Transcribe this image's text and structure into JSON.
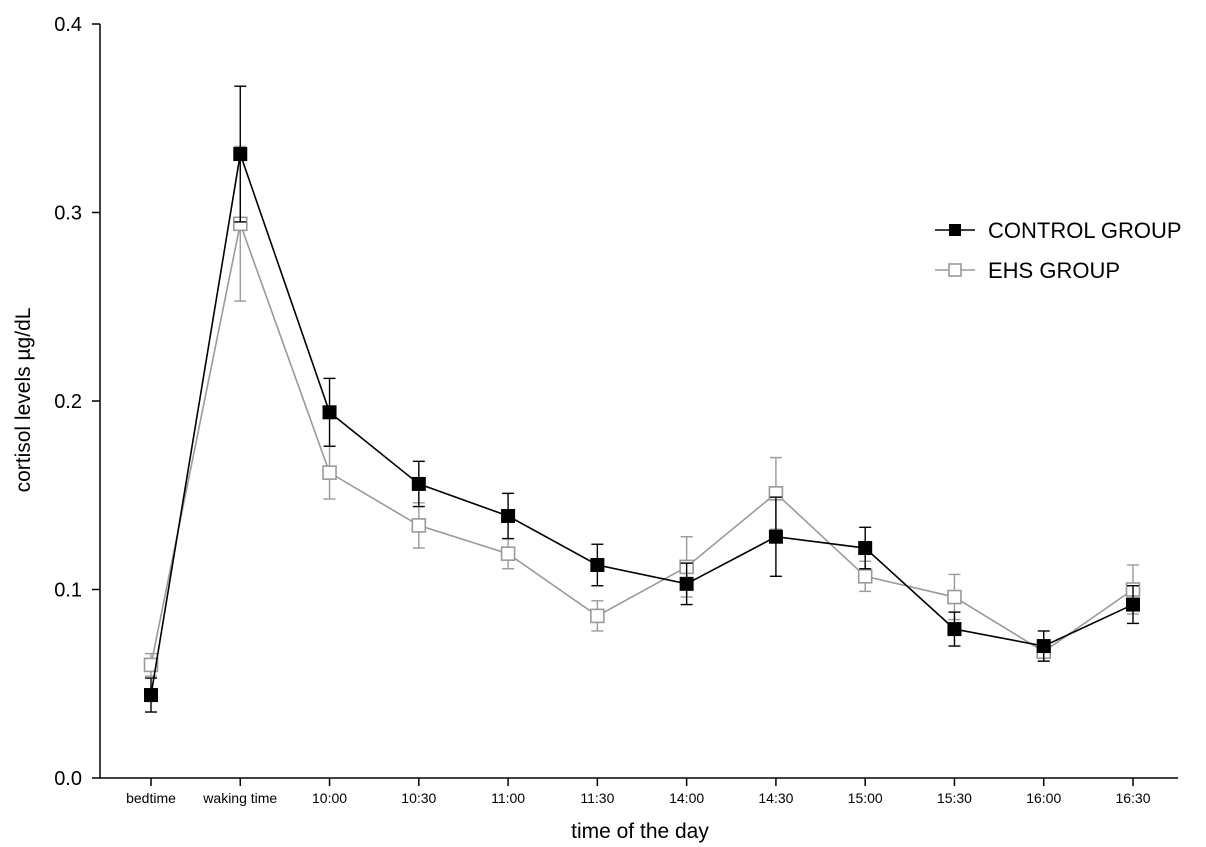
{
  "chart_data": {
    "type": "line",
    "title": "",
    "xlabel": "time of the day",
    "ylabel": "cortisol levels µg/dL",
    "categories": [
      "bedtime",
      "waking time",
      "10:00",
      "10:30",
      "11:00",
      "11:30",
      "14:00",
      "14:30",
      "15:00",
      "15:30",
      "16:00",
      "16:30"
    ],
    "ylim": [
      0.0,
      0.4
    ],
    "yticks": [
      "0.0",
      "0.1",
      "0.2",
      "0.3",
      "0.4"
    ],
    "grid": false,
    "legend_position": "top-right",
    "series": [
      {
        "name": "CONTROL GROUP",
        "color": "#000000",
        "marker": "filled-square",
        "values": [
          0.044,
          0.331,
          0.194,
          0.156,
          0.139,
          0.113,
          0.103,
          0.128,
          0.122,
          0.079,
          0.07,
          0.092
        ],
        "errors": [
          0.009,
          0.036,
          0.018,
          0.012,
          0.012,
          0.011,
          0.011,
          0.021,
          0.011,
          0.009,
          0.008,
          0.01
        ]
      },
      {
        "name": "EHS GROUP",
        "color": "#9a9a9a",
        "marker": "open-square",
        "values": [
          0.06,
          0.294,
          0.162,
          0.134,
          0.119,
          0.086,
          0.112,
          0.151,
          0.107,
          0.096,
          0.067,
          0.1
        ],
        "errors": [
          0.006,
          0.041,
          0.014,
          0.012,
          0.008,
          0.008,
          0.016,
          0.019,
          0.008,
          0.012,
          0.005,
          0.013
        ]
      }
    ]
  }
}
